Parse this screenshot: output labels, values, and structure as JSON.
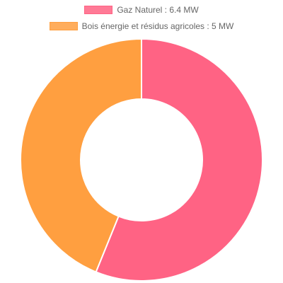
{
  "chart_data": {
    "type": "doughnut",
    "categories": [
      "Gaz Naturel : 6.4 MW",
      "Bois énergie et résidus agricoles : 5 MW"
    ],
    "values": [
      6.4,
      5
    ],
    "colors": [
      "#ff6384",
      "#ff9f40"
    ]
  }
}
